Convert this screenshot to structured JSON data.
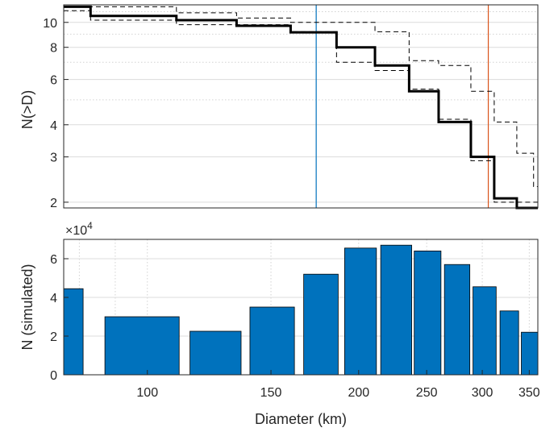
{
  "chart_data": [
    {
      "type": "line",
      "panel": "top",
      "ylabel": "N(>D)",
      "xlabel": "",
      "xscale": "log",
      "yscale": "log",
      "xlim": [
        76,
        360
      ],
      "ylim": [
        1.9,
        11.7
      ],
      "yticks": [
        2,
        3,
        4,
        6,
        8,
        10
      ],
      "ytick_labels": [
        "2",
        "3",
        "4",
        "6",
        "8",
        "10"
      ],
      "grid": true,
      "series": [
        {
          "role": "cumulative-count",
          "style": "solid-black-thick",
          "color": "#000000",
          "x": [
            76,
            83,
            110,
            134,
            160,
            186,
            211,
            236,
            260,
            289,
            312,
            336
          ],
          "y": [
            11.5,
            10.6,
            10.2,
            9.7,
            9.15,
            8.0,
            6.8,
            5.4,
            4.1,
            3.0,
            2.07,
            1.9
          ]
        },
        {
          "role": "upper-bound",
          "style": "dashed-black",
          "color": "#000000",
          "x": [
            76,
            110,
            134,
            160,
            211,
            236,
            260,
            289,
            312,
            336,
            355,
            360
          ],
          "y": [
            11.5,
            10.9,
            10.4,
            10.0,
            9.2,
            7.1,
            6.8,
            5.4,
            4.1,
            3.1,
            2.3,
            2.3
          ]
        },
        {
          "role": "lower-bound",
          "style": "dashed-black",
          "color": "#000000",
          "x": [
            76,
            83,
            110,
            160,
            186,
            211,
            236,
            260,
            289,
            312,
            360
          ],
          "y": [
            11.1,
            10.2,
            9.8,
            9.2,
            7.0,
            6.5,
            5.5,
            4.2,
            2.9,
            2.0,
            1.9
          ]
        }
      ],
      "vlines": [
        {
          "x": 174,
          "color": "#0072bd"
        },
        {
          "x": 306,
          "color": "#d95319"
        }
      ]
    },
    {
      "type": "bar",
      "panel": "bottom",
      "ylabel": "N (simulated)",
      "xlabel": "Diameter (km)",
      "xscale": "log",
      "xlim": [
        76,
        360
      ],
      "ylim": [
        0,
        70000
      ],
      "y_exponent_label": "×10",
      "y_exponent": "4",
      "yticks": [
        0,
        20000,
        40000,
        60000
      ],
      "ytick_labels": [
        "0",
        "2",
        "4",
        "6"
      ],
      "xticks": [
        100,
        150,
        200,
        250,
        300,
        350
      ],
      "xtick_labels": [
        "100",
        "150",
        "200",
        "250",
        "300",
        "350"
      ],
      "grid": true,
      "bar_color": "#0072bd",
      "bars": [
        {
          "x0": 76,
          "x1": 81,
          "value": 44500
        },
        {
          "x0": 87,
          "x1": 111,
          "value": 30000
        },
        {
          "x0": 115,
          "x1": 136,
          "value": 22500
        },
        {
          "x0": 140,
          "x1": 162,
          "value": 35000
        },
        {
          "x0": 167,
          "x1": 187,
          "value": 52000
        },
        {
          "x0": 191,
          "x1": 212,
          "value": 65500
        },
        {
          "x0": 215,
          "x1": 238,
          "value": 67000
        },
        {
          "x0": 240,
          "x1": 262,
          "value": 64000
        },
        {
          "x0": 265,
          "x1": 288,
          "value": 57000
        },
        {
          "x0": 291,
          "x1": 314,
          "value": 45500
        },
        {
          "x0": 318,
          "x1": 338,
          "value": 33000
        },
        {
          "x0": 341,
          "x1": 360,
          "value": 22000
        }
      ]
    }
  ]
}
